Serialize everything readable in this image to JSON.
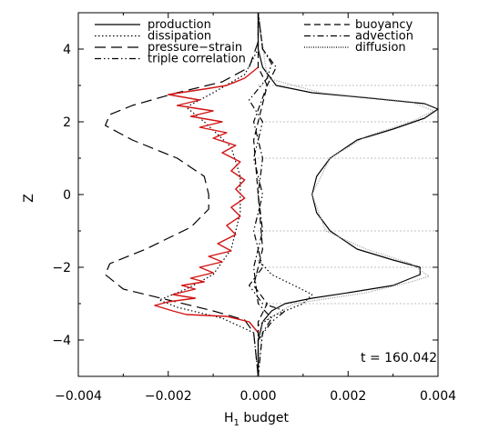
{
  "chart_data": {
    "type": "line",
    "xlabel": "H",
    "xlabel_sub": "1",
    "xlabel_rest": " budget",
    "ylabel": "Z",
    "xlim": [
      -0.004,
      0.004
    ],
    "ylim": [
      -5,
      5
    ],
    "x_ticks": [
      -0.004,
      -0.002,
      0.0,
      0.002,
      0.004
    ],
    "x_tick_labels": [
      "−0.004",
      "−0.002",
      "0.000",
      "0.002",
      "0.004"
    ],
    "y_ticks": [
      -4,
      -2,
      0,
      2,
      4
    ],
    "y_tick_labels": [
      "−4",
      "−2",
      "0",
      "2",
      "4"
    ],
    "reference_lines_z": [
      3,
      2,
      1,
      -1,
      -2,
      -3
    ],
    "annotation": "t = 160.042",
    "legend": [
      {
        "name": "production",
        "dash": "solid"
      },
      {
        "name": "dissipation",
        "dash": "dotted"
      },
      {
        "name": "pressure−strain",
        "dash": "longdash"
      },
      {
        "name": "triple correlation",
        "dash": "dashdotdot"
      },
      {
        "name": "buoyancy",
        "dash": "dashed"
      },
      {
        "name": "advection",
        "dash": "dashdot"
      },
      {
        "name": "diffusion",
        "dash": "finedot"
      }
    ],
    "series": [
      {
        "name": "production",
        "color": "#000000",
        "dash": "solid",
        "points": [
          [
            0.0,
            -5.0
          ],
          [
            0.0,
            -4.0
          ],
          [
            0.0001,
            -3.5
          ],
          [
            0.0003,
            -3.2
          ],
          [
            0.0006,
            -3.0
          ],
          [
            0.0012,
            -2.85
          ],
          [
            0.002,
            -2.7
          ],
          [
            0.003,
            -2.5
          ],
          [
            0.0036,
            -2.2
          ],
          [
            0.0036,
            -2.0
          ],
          [
            0.003,
            -1.8
          ],
          [
            0.0022,
            -1.5
          ],
          [
            0.0016,
            -1.0
          ],
          [
            0.0013,
            -0.5
          ],
          [
            0.0012,
            0.0
          ],
          [
            0.0013,
            0.5
          ],
          [
            0.0016,
            1.0
          ],
          [
            0.0022,
            1.5
          ],
          [
            0.003,
            1.8
          ],
          [
            0.0037,
            2.1
          ],
          [
            0.004,
            2.35
          ],
          [
            0.0037,
            2.5
          ],
          [
            0.0025,
            2.65
          ],
          [
            0.0012,
            2.8
          ],
          [
            0.0004,
            3.0
          ],
          [
            0.0001,
            3.5
          ],
          [
            0.0,
            4.0
          ],
          [
            0.0,
            5.0
          ]
        ]
      },
      {
        "name": "diffusion",
        "color": "#9a9a9a",
        "dash": "finedot",
        "points": [
          [
            0.0,
            -5.0
          ],
          [
            0.0001,
            -3.5
          ],
          [
            0.0008,
            -3.0
          ],
          [
            0.0024,
            -2.7
          ],
          [
            0.0034,
            -2.4
          ],
          [
            0.0038,
            -2.25
          ],
          [
            0.0034,
            -1.9
          ],
          [
            0.0024,
            -1.5
          ],
          [
            0.0015,
            -1.0
          ],
          [
            0.0012,
            0.0
          ],
          [
            0.0016,
            1.0
          ],
          [
            0.0024,
            1.6
          ],
          [
            0.0034,
            2.0
          ],
          [
            0.0039,
            2.3
          ],
          [
            0.0034,
            2.55
          ],
          [
            0.0014,
            2.8
          ],
          [
            0.0002,
            3.2
          ],
          [
            0.0,
            5.0
          ]
        ]
      },
      {
        "name": "pressure−strain",
        "color": "#000000",
        "dash": "longdash",
        "points": [
          [
            0.0,
            -5.0
          ],
          [
            -0.0001,
            -3.8
          ],
          [
            -0.0003,
            -3.45
          ],
          [
            -0.001,
            -3.2
          ],
          [
            -0.002,
            -2.9
          ],
          [
            -0.003,
            -2.6
          ],
          [
            -0.0034,
            -2.2
          ],
          [
            -0.0033,
            -1.9
          ],
          [
            -0.0025,
            -1.5
          ],
          [
            -0.0015,
            -0.9
          ],
          [
            -0.0011,
            -0.4
          ],
          [
            -0.0011,
            0.0
          ],
          [
            -0.0012,
            0.5
          ],
          [
            -0.0018,
            1.0
          ],
          [
            -0.0028,
            1.5
          ],
          [
            -0.0034,
            1.9
          ],
          [
            -0.0033,
            2.2
          ],
          [
            -0.0028,
            2.45
          ],
          [
            -0.0018,
            2.8
          ],
          [
            -0.0008,
            3.1
          ],
          [
            -0.0002,
            3.5
          ],
          [
            0.0,
            4.2
          ],
          [
            0.0,
            5.0
          ]
        ]
      },
      {
        "name": "dissipation",
        "color": "#000000",
        "dash": "dotted",
        "points": [
          [
            0.0,
            -5.0
          ],
          [
            -0.0001,
            -3.8
          ],
          [
            -0.0008,
            -3.4
          ],
          [
            -0.0018,
            -3.1
          ],
          [
            -0.0022,
            -2.9
          ],
          [
            -0.0016,
            -2.6
          ],
          [
            -0.001,
            -2.2
          ],
          [
            -0.0006,
            -1.5
          ],
          [
            -0.0004,
            -0.5
          ],
          [
            -0.0004,
            0.5
          ],
          [
            -0.0006,
            1.3
          ],
          [
            -0.0012,
            2.0
          ],
          [
            -0.0016,
            2.4
          ],
          [
            -0.001,
            2.8
          ],
          [
            -0.0003,
            3.3
          ],
          [
            0.0,
            4.0
          ],
          [
            0.0,
            5.0
          ]
        ]
      },
      {
        "name": "dissipation-positive",
        "color": "#000000",
        "dash": "dotted",
        "points": [
          [
            0.0,
            -3.6
          ],
          [
            0.0004,
            -3.3
          ],
          [
            0.001,
            -3.0
          ],
          [
            0.0012,
            -2.75
          ],
          [
            0.0008,
            -2.5
          ],
          [
            0.0003,
            -2.2
          ],
          [
            0.0,
            -1.8
          ]
        ]
      },
      {
        "name": "red-total",
        "color": "#d21414",
        "dash": "solid",
        "points": [
          [
            0.0,
            -3.8
          ],
          [
            -0.0002,
            -3.5
          ],
          [
            -0.0007,
            -3.35
          ],
          [
            -0.0016,
            -3.3
          ],
          [
            -0.0019,
            -3.2
          ],
          [
            -0.0023,
            -3.05
          ],
          [
            -0.002,
            -2.95
          ],
          [
            -0.0014,
            -2.85
          ],
          [
            -0.0019,
            -2.75
          ],
          [
            -0.0014,
            -2.6
          ],
          [
            -0.0017,
            -2.5
          ],
          [
            -0.0012,
            -2.4
          ],
          [
            -0.0015,
            -2.3
          ],
          [
            -0.001,
            -2.15
          ],
          [
            -0.0013,
            -2.0
          ],
          [
            -0.0008,
            -1.85
          ],
          [
            -0.0011,
            -1.7
          ],
          [
            -0.0006,
            -1.55
          ],
          [
            -0.0009,
            -1.35
          ],
          [
            -0.0005,
            -1.1
          ],
          [
            -0.0007,
            -0.85
          ],
          [
            -0.0004,
            -0.6
          ],
          [
            -0.0006,
            -0.35
          ],
          [
            -0.0003,
            -0.1
          ],
          [
            -0.0005,
            0.15
          ],
          [
            -0.0003,
            0.4
          ],
          [
            -0.0006,
            0.65
          ],
          [
            -0.0004,
            0.9
          ],
          [
            -0.0008,
            1.15
          ],
          [
            -0.0005,
            1.35
          ],
          [
            -0.001,
            1.55
          ],
          [
            -0.0007,
            1.7
          ],
          [
            -0.0013,
            1.85
          ],
          [
            -0.0008,
            2.0
          ],
          [
            -0.0015,
            2.15
          ],
          [
            -0.001,
            2.3
          ],
          [
            -0.0018,
            2.45
          ],
          [
            -0.0013,
            2.6
          ],
          [
            -0.002,
            2.75
          ],
          [
            -0.0012,
            2.9
          ],
          [
            -0.0007,
            3.0
          ],
          [
            -0.0003,
            3.2
          ],
          [
            0.0,
            3.5
          ]
        ]
      },
      {
        "name": "triple correlation",
        "color": "#000000",
        "dash": "dashdotdot",
        "points": [
          [
            0.0,
            -5.0
          ],
          [
            0.0,
            -4.0
          ],
          [
            0.0003,
            -3.5
          ],
          [
            0.0006,
            -3.2
          ],
          [
            0.0001,
            -3.0
          ],
          [
            -0.0002,
            -2.5
          ],
          [
            0.0001,
            -2.0
          ],
          [
            -0.0001,
            -1.0
          ],
          [
            0.0001,
            0.0
          ],
          [
            -0.0001,
            1.0
          ],
          [
            0.0001,
            2.0
          ],
          [
            -0.0002,
            2.6
          ],
          [
            0.0002,
            3.2
          ],
          [
            0.0003,
            3.6
          ],
          [
            0.0001,
            4.0
          ],
          [
            0.0,
            5.0
          ]
        ]
      },
      {
        "name": "buoyancy",
        "color": "#000000",
        "dash": "dashed",
        "points": [
          [
            0.0,
            -5.0
          ],
          [
            0.0,
            -3.5
          ],
          [
            0.0002,
            -3.0
          ],
          [
            -0.0001,
            -2.5
          ],
          [
            0.0001,
            -1.5
          ],
          [
            0.0,
            0.0
          ],
          [
            -0.0001,
            1.5
          ],
          [
            0.0001,
            2.5
          ],
          [
            0.0002,
            3.0
          ],
          [
            0.0,
            3.5
          ],
          [
            0.0,
            5.0
          ]
        ]
      },
      {
        "name": "advection",
        "color": "#000000",
        "dash": "dashdot",
        "points": [
          [
            0.0,
            -5.0
          ],
          [
            0.0001,
            -3.8
          ],
          [
            0.0003,
            -3.4
          ],
          [
            0.0,
            -3.0
          ],
          [
            -0.0001,
            -2.0
          ],
          [
            0.0001,
            -1.0
          ],
          [
            0.0,
            0.0
          ],
          [
            0.0001,
            1.0
          ],
          [
            -0.0001,
            2.0
          ],
          [
            0.0002,
            3.0
          ],
          [
            0.0004,
            3.5
          ],
          [
            0.0001,
            4.0
          ],
          [
            0.0,
            5.0
          ]
        ]
      }
    ]
  }
}
